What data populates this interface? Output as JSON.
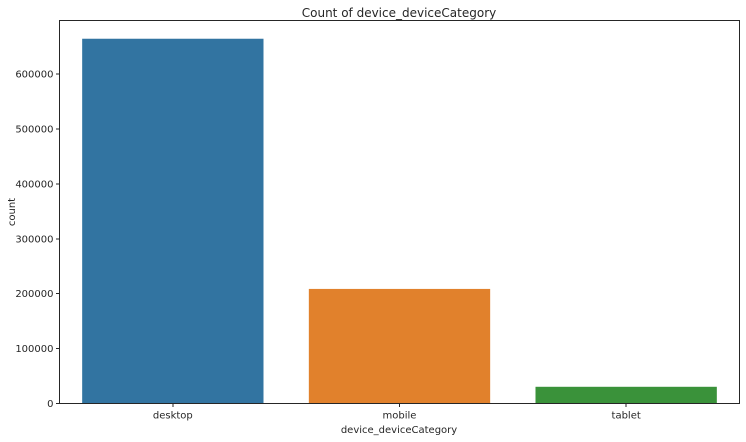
{
  "chart_data": {
    "type": "bar",
    "title": "Count of device_deviceCategory",
    "xlabel": "device_deviceCategory",
    "ylabel": "count",
    "categories": [
      "desktop",
      "mobile",
      "tablet"
    ],
    "values": [
      664479,
      208725,
      30449
    ],
    "colors": [
      "#3274a1",
      "#e1812c",
      "#3a923a"
    ],
    "ylim": [
      0,
      697700
    ],
    "yticks": [
      0,
      100000,
      200000,
      300000,
      400000,
      500000,
      600000
    ],
    "grid": false,
    "legend": "none"
  }
}
